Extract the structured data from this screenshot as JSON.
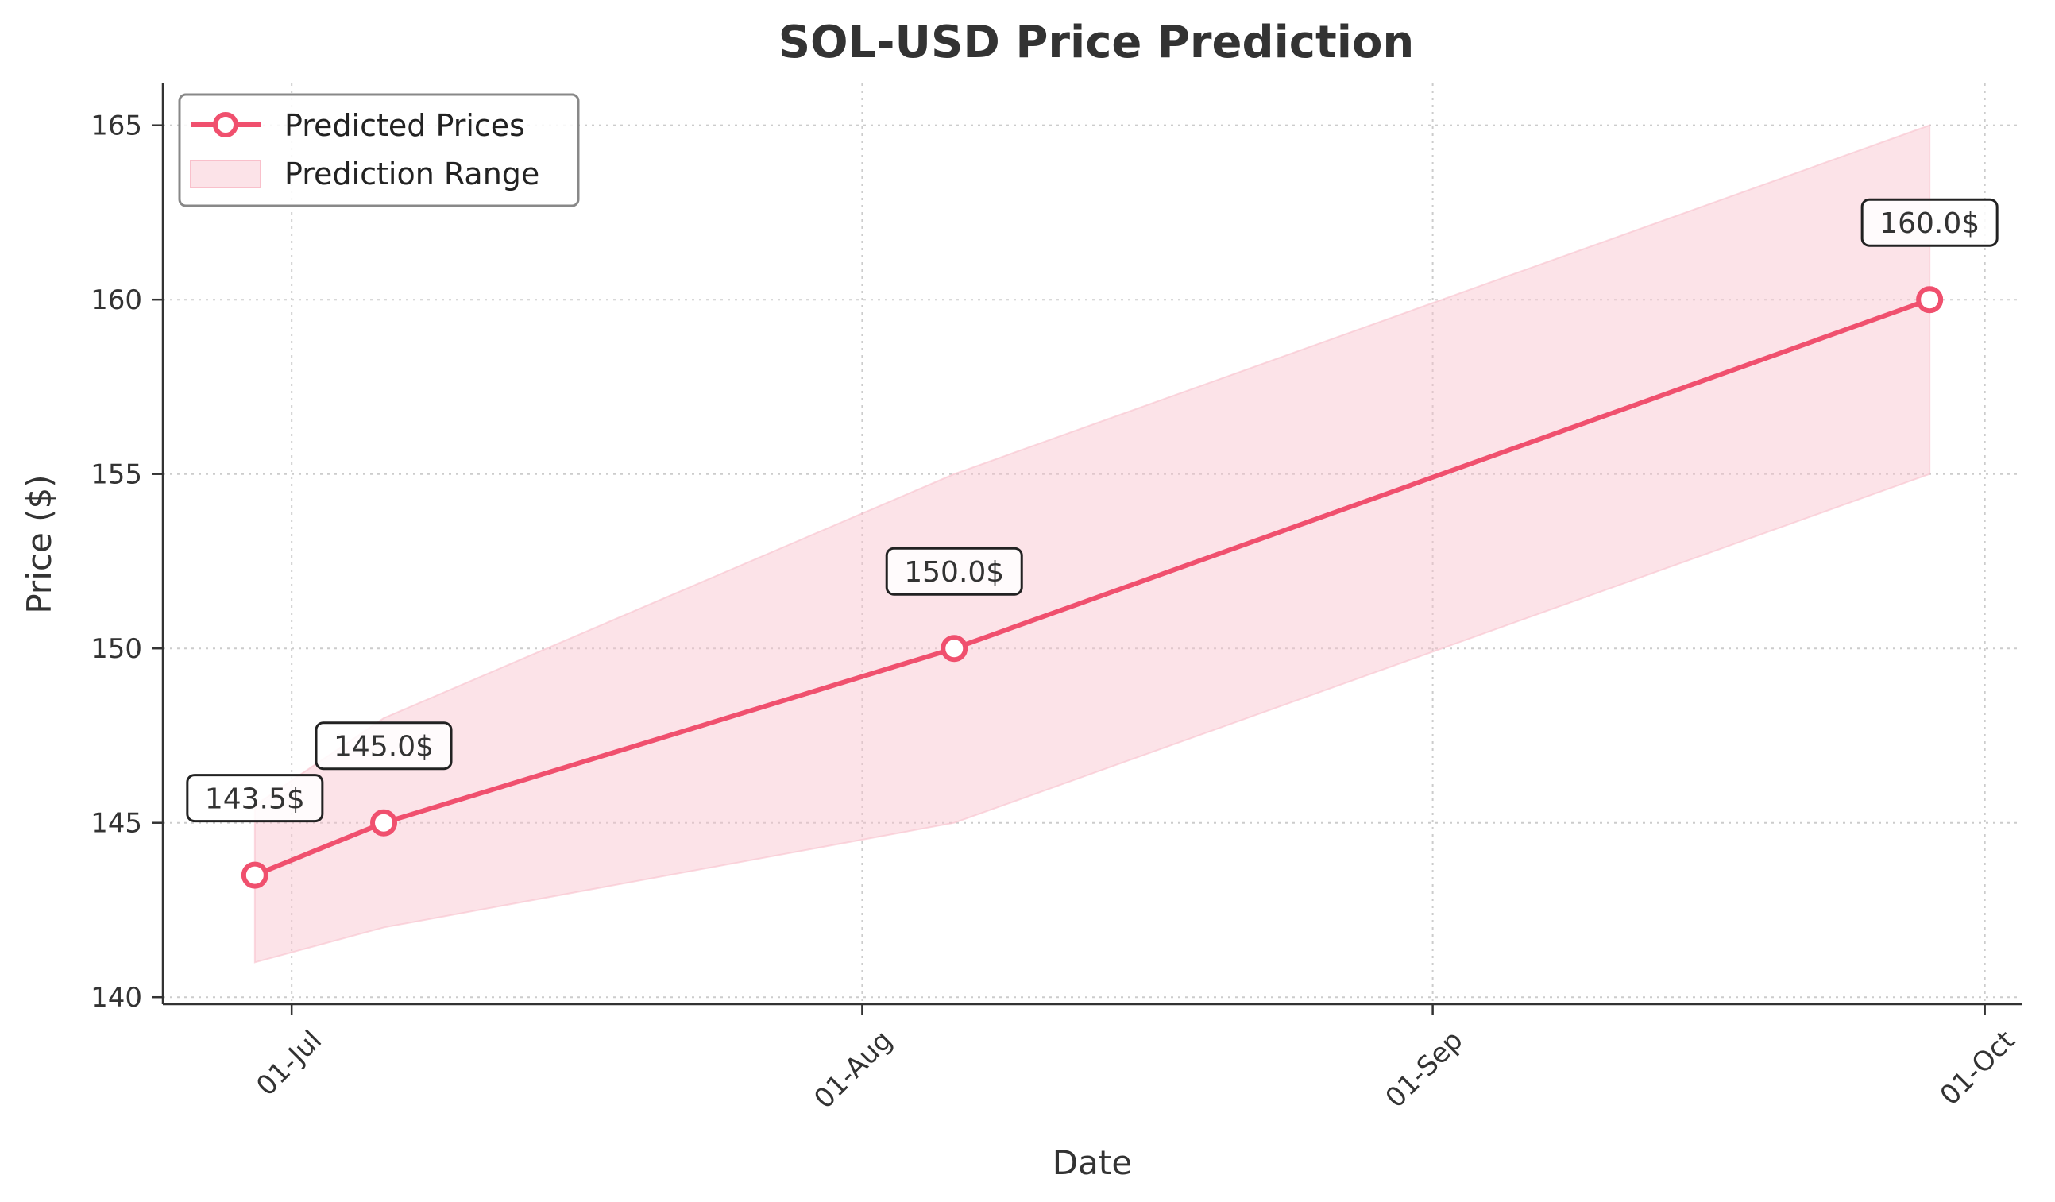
{
  "chart_data": {
    "type": "line",
    "title": "SOL-USD Price Prediction",
    "xlabel": "Date",
    "ylabel": "Price ($)",
    "x_ticks": [
      {
        "date": "2025-07-01",
        "label": "01-Jul"
      },
      {
        "date": "2025-08-01",
        "label": "01-Aug"
      },
      {
        "date": "2025-09-01",
        "label": "01-Sep"
      },
      {
        "date": "2025-10-01",
        "label": "01-Oct"
      }
    ],
    "y_ticks": [
      140,
      145,
      150,
      155,
      160,
      165
    ],
    "xlim": [
      "2025-06-24",
      "2025-10-03"
    ],
    "ylim": [
      139.8,
      166.2
    ],
    "grid": true,
    "legend_position": "top-left",
    "series": [
      {
        "name": "Predicted Prices",
        "color": "#f0506e",
        "points": [
          {
            "date": "2025-06-29",
            "value": 143.5,
            "label": "143.5$"
          },
          {
            "date": "2025-07-06",
            "value": 145.0,
            "label": "145.0$"
          },
          {
            "date": "2025-08-06",
            "value": 150.0,
            "label": "150.0$"
          },
          {
            "date": "2025-09-28",
            "value": 160.0,
            "label": "160.0$"
          }
        ]
      }
    ],
    "range": {
      "name": "Prediction Range",
      "color": "#f9c0cb",
      "points": [
        {
          "date": "2025-06-29",
          "low": 141.0,
          "high": 145.5
        },
        {
          "date": "2025-07-06",
          "low": 142.0,
          "high": 148.0
        },
        {
          "date": "2025-08-06",
          "low": 145.0,
          "high": 155.0
        },
        {
          "date": "2025-09-28",
          "low": 155.0,
          "high": 165.0
        }
      ]
    }
  }
}
